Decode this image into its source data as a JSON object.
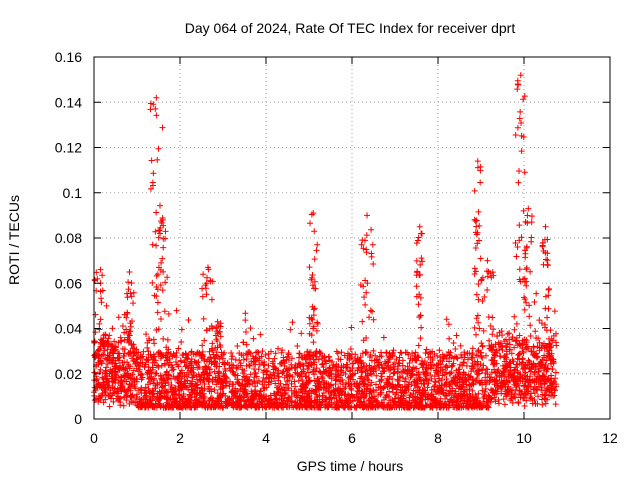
{
  "chart_data": {
    "type": "scatter",
    "title": "Day 064 of 2024, Rate Of TEC Index for receiver dprt",
    "xlabel": "GPS time / hours",
    "ylabel": "ROTI / TECUs",
    "xlim": [
      0,
      12
    ],
    "ylim": [
      0,
      0.16
    ],
    "x_ticks": [
      0,
      2,
      4,
      6,
      8,
      10,
      12
    ],
    "y_ticks": [
      0,
      0.02,
      0.04,
      0.06,
      0.08,
      0.1,
      0.12,
      0.14,
      0.16
    ],
    "x_tick_labels": [
      "0",
      "2",
      "4",
      "6",
      "8",
      "10",
      "12"
    ],
    "y_tick_labels": [
      "0",
      "0.02",
      "0.04",
      "0.06",
      "0.08",
      "0.1",
      "0.12",
      "0.14",
      "0.16"
    ],
    "grid": true,
    "marker": "+",
    "color": "#ff0000",
    "series": [
      {
        "name": "ROTI",
        "band": {
          "x_range": [
            0.0,
            10.75
          ],
          "typical_low": 0.005,
          "typical_high": 0.03,
          "n_points": 3500
        },
        "excursions": [
          {
            "x": [
              1.3,
              1.6
            ],
            "peak": 0.142
          },
          {
            "x": [
              1.45,
              1.75
            ],
            "peak": 0.088
          },
          {
            "x": [
              2.5,
              2.8
            ],
            "peak": 0.067
          },
          {
            "x": [
              2.8,
              2.95
            ],
            "peak": 0.043
          },
          {
            "x": [
              5.0,
              5.2
            ],
            "peak": 0.091
          },
          {
            "x": [
              6.2,
              6.5
            ],
            "peak": 0.09
          },
          {
            "x": [
              7.5,
              7.65
            ],
            "peak": 0.085
          },
          {
            "x": [
              8.85,
              9.0
            ],
            "peak": 0.114
          },
          {
            "x": [
              9.0,
              9.3
            ],
            "peak": 0.07
          },
          {
            "x": [
              9.8,
              10.05
            ],
            "peak": 0.152
          },
          {
            "x": [
              10.0,
              10.2
            ],
            "peak": 0.093
          },
          {
            "x": [
              10.4,
              10.6
            ],
            "peak": 0.085
          },
          {
            "x": [
              0.0,
              0.3
            ],
            "peak": 0.066
          },
          {
            "x": [
              0.7,
              0.95
            ],
            "peak": 0.065
          }
        ]
      }
    ]
  }
}
